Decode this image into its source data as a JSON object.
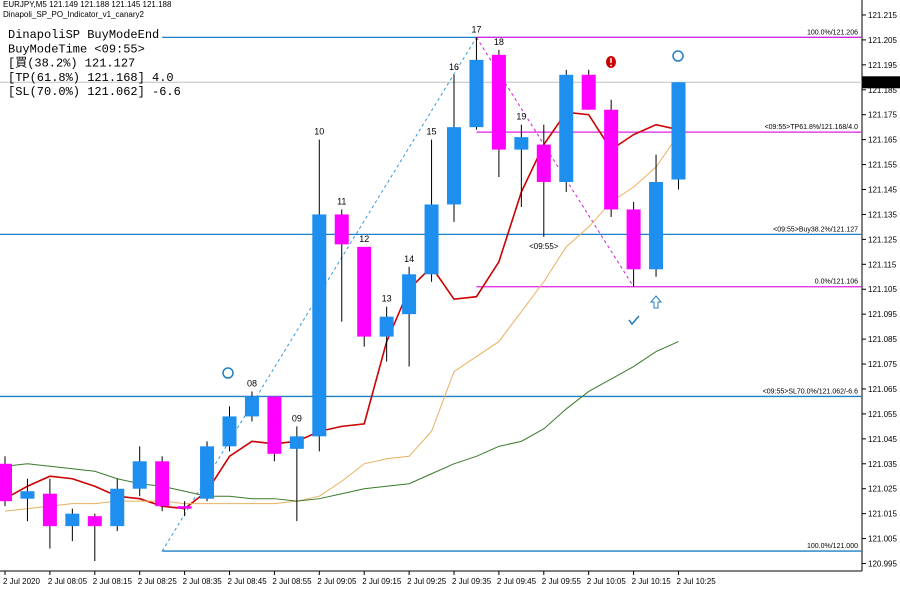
{
  "chart_data": {
    "type": "candlestick",
    "title": "EURJPY,M5  121.149 121.188 121.145 121.188",
    "subtitle": "Dinapoli_SP_PO_Indicator_v1_canary2",
    "annotations": [
      {
        "text": "DinapoliSP BuyModeEnd",
        "color": "#3399dd"
      },
      {
        "text": "BuyModeTime <09:55>",
        "color": "#3399dd"
      },
      {
        "text": "[買(38.2%) 121.127",
        "color": "#3399dd"
      },
      {
        "text": "[TP(61.8%) 121.168] 4.0",
        "color": "#e020e0"
      },
      {
        "text": "[SL(70.0%) 121.062] -6.6",
        "color": "#3399dd"
      }
    ],
    "categories": [
      "2 Jul 2020",
      null,
      "2 Jul 08:05",
      null,
      "2 Jul 08:15",
      null,
      "2 Jul 08:25",
      null,
      "2 Jul 08:35",
      null,
      "2 Jul 08:45",
      null,
      "2 Jul 08:55",
      null,
      "2 Jul 09:05",
      null,
      "2 Jul 09:15",
      null,
      "2 Jul 09:25",
      null,
      "2 Jul 09:35",
      null,
      "2 Jul 09:45",
      null,
      "2 Jul 09:55",
      null,
      "2 Jul 10:05",
      null,
      "2 Jul 10:15",
      null,
      "2 Jul 10:25"
    ],
    "open": [
      121.035,
      121.021,
      121.023,
      121.01,
      121.014,
      121.01,
      121.025,
      121.036,
      121.018,
      121.021,
      121.042,
      121.054,
      121.062,
      121.041,
      121.046,
      121.135,
      121.122,
      121.086,
      121.095,
      121.111,
      121.139,
      121.17,
      121.199,
      121.161,
      121.163,
      121.148,
      121.191,
      121.177,
      121.137,
      121.113,
      121.149
    ],
    "high": [
      121.038,
      121.029,
      121.029,
      121.017,
      121.015,
      121.029,
      121.042,
      121.038,
      121.02,
      121.044,
      121.058,
      121.064,
      121.062,
      121.05,
      121.165,
      121.137,
      121.122,
      121.098,
      121.114,
      121.165,
      121.191,
      121.206,
      121.201,
      121.171,
      121.171,
      121.193,
      121.193,
      121.181,
      121.14,
      121.159,
      121.188
    ],
    "low": [
      121.018,
      121.012,
      121.001,
      121.004,
      120.996,
      121.008,
      121.022,
      121.016,
      121.014,
      121.02,
      121.04,
      121.052,
      121.036,
      121.012,
      121.04,
      121.092,
      121.082,
      121.076,
      121.074,
      121.108,
      121.132,
      121.169,
      121.15,
      121.138,
      121.126,
      121.144,
      121.177,
      121.134,
      121.106,
      121.11,
      121.145
    ],
    "close": [
      121.02,
      121.024,
      121.01,
      121.015,
      121.01,
      121.025,
      121.036,
      121.018,
      121.017,
      121.042,
      121.054,
      121.062,
      121.039,
      121.046,
      121.135,
      121.123,
      121.086,
      121.094,
      121.111,
      121.139,
      121.17,
      121.197,
      121.161,
      121.166,
      121.148,
      121.191,
      121.177,
      121.137,
      121.113,
      121.148,
      121.188
    ],
    "up_color": "#1e8fef",
    "down_color": "#ff00ff",
    "bar_labels": [
      null,
      null,
      null,
      null,
      null,
      null,
      null,
      null,
      null,
      null,
      null,
      "08",
      null,
      "09",
      "10",
      "11",
      "12",
      "13",
      "14",
      "15",
      "16",
      "17",
      "18",
      "19",
      null,
      null,
      null,
      null,
      null,
      null,
      null
    ],
    "bar_label_color": "#4a90c8",
    "lines": [
      {
        "color": "#cc0000",
        "values": [
          121.021,
          121.026,
          121.03,
          121.029,
          121.026,
          121.022,
          121.021,
          121.018,
          121.017,
          121.024,
          121.038,
          121.044,
          121.043,
          121.044,
          121.048,
          121.05,
          121.051,
          121.084,
          121.105,
          121.114,
          121.101,
          121.102,
          121.116,
          121.144,
          121.163,
          121.176,
          121.175,
          121.161,
          121.167,
          121.171,
          121.169
        ]
      },
      {
        "color": "#e8b060",
        "values": [
          121.016,
          121.017,
          121.018,
          121.019,
          121.019,
          121.02,
          121.02,
          121.02,
          121.019,
          121.019,
          121.019,
          121.019,
          121.019,
          121.02,
          121.022,
          121.028,
          121.035,
          121.037,
          121.038,
          121.048,
          121.072,
          121.078,
          121.084,
          121.096,
          121.108,
          121.122,
          121.13,
          121.14,
          121.146,
          121.154,
          121.167
        ]
      },
      {
        "color": "#3a7a2a",
        "values": [
          121.034,
          121.035,
          121.034,
          121.033,
          121.032,
          121.029,
          121.027,
          121.026,
          121.024,
          121.022,
          121.022,
          121.021,
          121.021,
          121.02,
          121.021,
          121.023,
          121.025,
          121.026,
          121.027,
          121.031,
          121.035,
          121.038,
          121.042,
          121.044,
          121.049,
          121.057,
          121.064,
          121.069,
          121.074,
          121.08,
          121.084
        ]
      }
    ],
    "zigzag": {
      "x": [
        7,
        21,
        28
      ],
      "values": [
        121.0,
        121.206,
        121.106
      ],
      "colors": [
        "#3399dd",
        "#d020d0"
      ]
    },
    "levels": [
      {
        "value": 121.206,
        "start": 7,
        "color": "#1f7fc8"
      },
      {
        "value": 121.206,
        "start": 21,
        "color": "#e020e0",
        "label": "100.0%/121.206"
      },
      {
        "value": 121.168,
        "start": 21,
        "color": "#e020e0",
        "label": "<09:55>TP61.8%/121.168/4.0"
      },
      {
        "value": 121.127,
        "start": 0,
        "color": "#1f7fc8",
        "label": "<09:55>Buy38.2%/121.127"
      },
      {
        "value": 121.106,
        "start": 21,
        "color": "#e020e0",
        "label": "0.0%/121.106"
      },
      {
        "value": 121.062,
        "start": 0,
        "color": "#1f7fc8",
        "label": "<09:55>SL70.0%/121.062/-6.6"
      },
      {
        "value": 121.0,
        "start": 7,
        "color": "#1f7fc8",
        "label": "100.0%/121.000"
      }
    ],
    "time_marker": {
      "index": 24,
      "label": "<09:55>"
    },
    "current_price": 121.188,
    "ylim": [
      120.992,
      121.221
    ],
    "yticks": [
      121.215,
      121.205,
      121.195,
      121.185,
      121.175,
      121.165,
      121.155,
      121.145,
      121.135,
      121.125,
      121.115,
      121.105,
      121.095,
      121.085,
      121.075,
      121.065,
      121.055,
      121.045,
      121.035,
      121.025,
      121.015,
      121.005,
      120.995
    ]
  }
}
